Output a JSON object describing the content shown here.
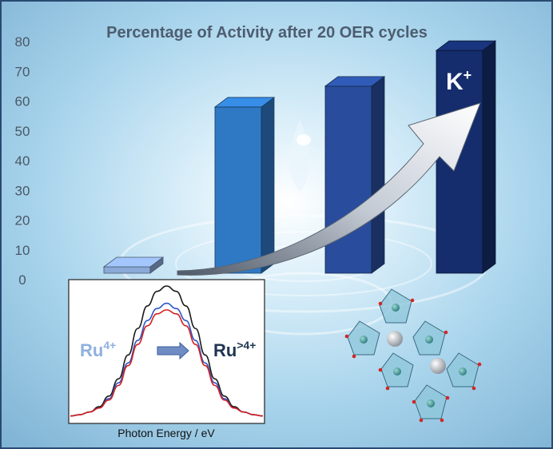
{
  "chart_data": [
    {
      "type": "bar",
      "title": "Percentage of Activity after 20 OER cycles",
      "categories": [
        "",
        "",
        "",
        ""
      ],
      "values": [
        3,
        58,
        65,
        77
      ],
      "ylim": [
        0,
        80
      ],
      "yticks": [
        0,
        10,
        20,
        30,
        40,
        50,
        60,
        70,
        80
      ],
      "grid": false,
      "colors": [
        "#8aa9d6",
        "#2f78c4",
        "#294d9c",
        "#152d6c"
      ],
      "annotations": [
        "K+"
      ]
    },
    {
      "type": "line",
      "xlabel": "Photon Energy / eV",
      "series": [
        {
          "color": "#1a1a1a",
          "values": [
            0.02,
            0.03,
            0.05,
            0.09,
            0.17,
            0.3,
            0.48,
            0.68,
            0.85,
            0.96,
            1.0,
            0.96,
            0.85,
            0.68,
            0.48,
            0.3,
            0.17,
            0.09,
            0.05,
            0.03,
            0.02
          ]
        },
        {
          "color": "#2d55c8",
          "values": [
            0.02,
            0.03,
            0.05,
            0.08,
            0.15,
            0.27,
            0.42,
            0.59,
            0.74,
            0.83,
            0.87,
            0.83,
            0.74,
            0.59,
            0.42,
            0.27,
            0.15,
            0.08,
            0.05,
            0.03,
            0.02
          ]
        },
        {
          "color": "#d42020",
          "values": [
            0.02,
            0.03,
            0.05,
            0.08,
            0.14,
            0.25,
            0.4,
            0.56,
            0.7,
            0.79,
            0.82,
            0.79,
            0.7,
            0.56,
            0.4,
            0.25,
            0.14,
            0.08,
            0.05,
            0.03,
            0.02
          ]
        }
      ],
      "annotations": {
        "left": "Ru",
        "left_sup": "4+",
        "right": "Ru",
        "right_sup": ">4+"
      }
    }
  ]
}
